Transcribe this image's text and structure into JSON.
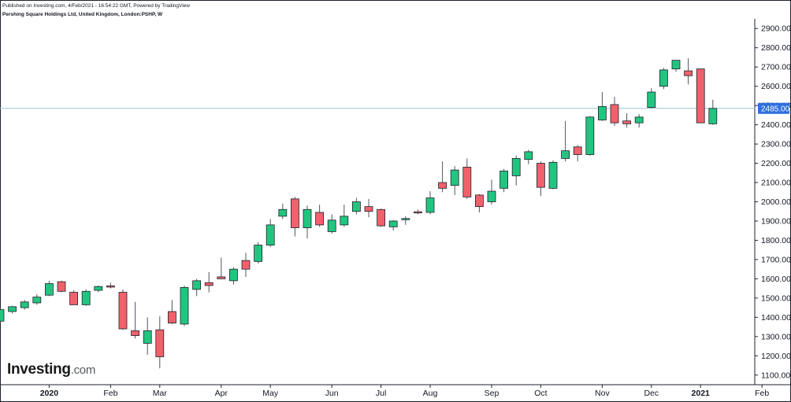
{
  "header": {
    "published": "Published on Investing.com, 4/Feb/2021 - 16:54:22 GMT, Powered by TradingView",
    "subtitle": "Pershing Square Holdings Ltd, United Kingdom, London:PSHP, W"
  },
  "logo": {
    "name": "Investing",
    "suffix": ".com"
  },
  "colors": {
    "up": "#22c57f",
    "down": "#f0616c",
    "wick": "#505560",
    "price_line": "#9ec3d8",
    "price_tag": "#2f6fdd"
  },
  "last_price": {
    "value": 2485,
    "label": "2485.00"
  },
  "chart_data": {
    "type": "candlestick",
    "ylim": [
      1050,
      2950
    ],
    "y_ticks": [
      "2900.00",
      "2800.00",
      "2700.00",
      "2600.00",
      "2500.00",
      "2400.00",
      "2300.00",
      "2200.00",
      "2100.00",
      "2000.00",
      "1900.00",
      "1800.00",
      "1700.00",
      "1600.00",
      "1500.00",
      "1400.00",
      "1300.00",
      "1200.00",
      "1100.00"
    ],
    "x_ticks": [
      {
        "label": "2020",
        "week": 4,
        "bold": true
      },
      {
        "label": "Feb",
        "week": 9,
        "bold": false
      },
      {
        "label": "Mar",
        "week": 13,
        "bold": false
      },
      {
        "label": "Apr",
        "week": 18,
        "bold": false
      },
      {
        "label": "May",
        "week": 22,
        "bold": false
      },
      {
        "label": "Jun",
        "week": 27,
        "bold": false
      },
      {
        "label": "Jul",
        "week": 31,
        "bold": false
      },
      {
        "label": "Aug",
        "week": 35,
        "bold": false
      },
      {
        "label": "Sep",
        "week": 40,
        "bold": false
      },
      {
        "label": "Oct",
        "week": 44,
        "bold": false
      },
      {
        "label": "Nov",
        "week": 49,
        "bold": false
      },
      {
        "label": "Dec",
        "week": 53,
        "bold": false
      },
      {
        "label": "2021",
        "week": 57,
        "bold": true
      },
      {
        "label": "Feb",
        "week": 62,
        "bold": false
      }
    ],
    "candles": [
      {
        "o": 1380,
        "h": 1450,
        "l": 1370,
        "c": 1440
      },
      {
        "o": 1430,
        "h": 1460,
        "l": 1420,
        "c": 1455
      },
      {
        "o": 1450,
        "h": 1490,
        "l": 1440,
        "c": 1480
      },
      {
        "o": 1475,
        "h": 1520,
        "l": 1465,
        "c": 1505
      },
      {
        "o": 1515,
        "h": 1590,
        "l": 1510,
        "c": 1575
      },
      {
        "o": 1585,
        "h": 1590,
        "l": 1530,
        "c": 1535
      },
      {
        "o": 1530,
        "h": 1540,
        "l": 1465,
        "c": 1465
      },
      {
        "o": 1465,
        "h": 1545,
        "l": 1460,
        "c": 1535
      },
      {
        "o": 1540,
        "h": 1565,
        "l": 1530,
        "c": 1560
      },
      {
        "o": 1560,
        "h": 1580,
        "l": 1550,
        "c": 1555
      },
      {
        "o": 1530,
        "h": 1545,
        "l": 1335,
        "c": 1340
      },
      {
        "o": 1330,
        "h": 1480,
        "l": 1290,
        "c": 1305
      },
      {
        "o": 1265,
        "h": 1400,
        "l": 1205,
        "c": 1330
      },
      {
        "o": 1335,
        "h": 1405,
        "l": 1135,
        "c": 1195
      },
      {
        "o": 1430,
        "h": 1490,
        "l": 1365,
        "c": 1370
      },
      {
        "o": 1365,
        "h": 1565,
        "l": 1355,
        "c": 1555
      },
      {
        "o": 1545,
        "h": 1600,
        "l": 1510,
        "c": 1590
      },
      {
        "o": 1580,
        "h": 1635,
        "l": 1530,
        "c": 1565
      },
      {
        "o": 1610,
        "h": 1710,
        "l": 1600,
        "c": 1600
      },
      {
        "o": 1590,
        "h": 1660,
        "l": 1570,
        "c": 1650
      },
      {
        "o": 1695,
        "h": 1735,
        "l": 1610,
        "c": 1650
      },
      {
        "o": 1690,
        "h": 1790,
        "l": 1680,
        "c": 1775
      },
      {
        "o": 1775,
        "h": 1910,
        "l": 1765,
        "c": 1880
      },
      {
        "o": 1925,
        "h": 1990,
        "l": 1910,
        "c": 1960
      },
      {
        "o": 2015,
        "h": 2025,
        "l": 1820,
        "c": 1865
      },
      {
        "o": 1865,
        "h": 1980,
        "l": 1810,
        "c": 1960
      },
      {
        "o": 1945,
        "h": 1985,
        "l": 1870,
        "c": 1880
      },
      {
        "o": 1845,
        "h": 1935,
        "l": 1835,
        "c": 1905
      },
      {
        "o": 1880,
        "h": 1985,
        "l": 1870,
        "c": 1925
      },
      {
        "o": 1950,
        "h": 2020,
        "l": 1935,
        "c": 2000
      },
      {
        "o": 1975,
        "h": 2015,
        "l": 1920,
        "c": 1950
      },
      {
        "o": 1960,
        "h": 1965,
        "l": 1870,
        "c": 1875
      },
      {
        "o": 1870,
        "h": 1905,
        "l": 1850,
        "c": 1900
      },
      {
        "o": 1905,
        "h": 1925,
        "l": 1880,
        "c": 1910
      },
      {
        "o": 1945,
        "h": 1960,
        "l": 1935,
        "c": 1940
      },
      {
        "o": 1945,
        "h": 2055,
        "l": 1935,
        "c": 2020
      },
      {
        "o": 2100,
        "h": 2210,
        "l": 2050,
        "c": 2070
      },
      {
        "o": 2085,
        "h": 2185,
        "l": 2035,
        "c": 2165
      },
      {
        "o": 2180,
        "h": 2225,
        "l": 2015,
        "c": 2025
      },
      {
        "o": 2035,
        "h": 2040,
        "l": 1945,
        "c": 1975
      },
      {
        "o": 2000,
        "h": 2115,
        "l": 1985,
        "c": 2055
      },
      {
        "o": 2070,
        "h": 2170,
        "l": 2050,
        "c": 2160
      },
      {
        "o": 2135,
        "h": 2240,
        "l": 2085,
        "c": 2225
      },
      {
        "o": 2220,
        "h": 2270,
        "l": 2195,
        "c": 2260
      },
      {
        "o": 2200,
        "h": 2210,
        "l": 2030,
        "c": 2075
      },
      {
        "o": 2070,
        "h": 2215,
        "l": 2065,
        "c": 2205
      },
      {
        "o": 2225,
        "h": 2420,
        "l": 2210,
        "c": 2265
      },
      {
        "o": 2285,
        "h": 2295,
        "l": 2210,
        "c": 2245
      },
      {
        "o": 2245,
        "h": 2445,
        "l": 2240,
        "c": 2440
      },
      {
        "o": 2425,
        "h": 2570,
        "l": 2420,
        "c": 2495
      },
      {
        "o": 2505,
        "h": 2545,
        "l": 2395,
        "c": 2410
      },
      {
        "o": 2420,
        "h": 2460,
        "l": 2385,
        "c": 2405
      },
      {
        "o": 2410,
        "h": 2455,
        "l": 2385,
        "c": 2440
      },
      {
        "o": 2490,
        "h": 2590,
        "l": 2485,
        "c": 2570
      },
      {
        "o": 2600,
        "h": 2695,
        "l": 2585,
        "c": 2685
      },
      {
        "o": 2690,
        "h": 2735,
        "l": 2675,
        "c": 2735
      },
      {
        "o": 2680,
        "h": 2745,
        "l": 2610,
        "c": 2655
      },
      {
        "o": 2690,
        "h": 2690,
        "l": 2410,
        "c": 2410
      },
      {
        "o": 2405,
        "h": 2530,
        "l": 2400,
        "c": 2485
      }
    ]
  }
}
